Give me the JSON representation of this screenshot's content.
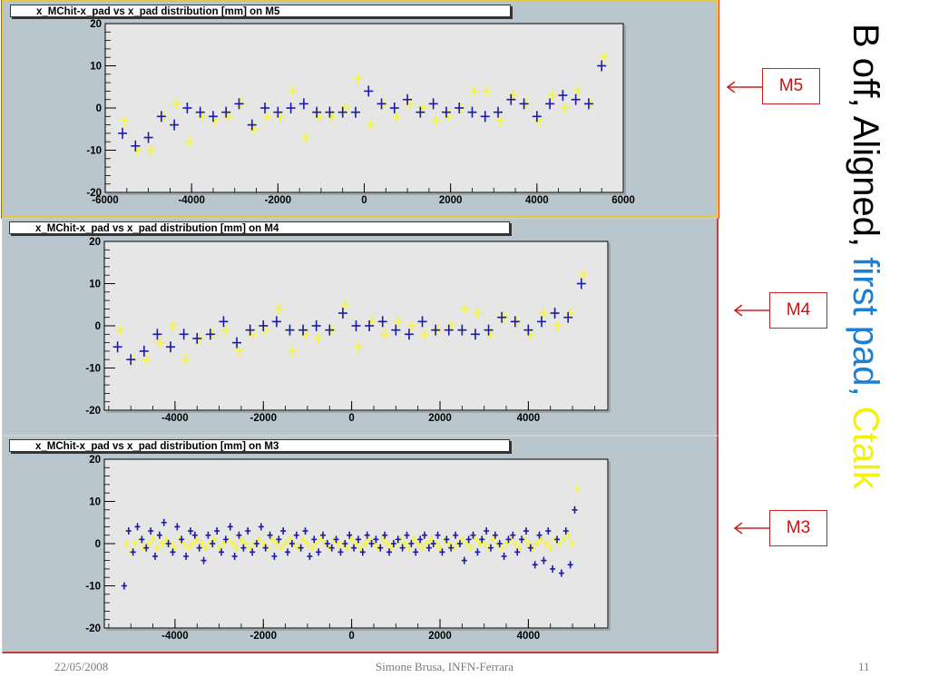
{
  "slide": {
    "title_parts": [
      {
        "text": "B off, Aligned, ",
        "color": "#000000"
      },
      {
        "text": "first pad, ",
        "color": "#1a7fd6"
      },
      {
        "text": "Ctalk",
        "color": "#f2f20c"
      }
    ],
    "callouts": [
      "M5",
      "M4",
      "M3"
    ],
    "footer": {
      "date": "22/05/2008",
      "author": "Simone Brusa, INFN-Ferrara",
      "page": "11"
    }
  },
  "colors": {
    "series_blue": "#1a1aa8",
    "series_yellow": "#f4f44a",
    "frame_bg": "#e6e6e6",
    "canvas_bg": "#b9c6cd"
  },
  "chart_data": [
    {
      "type": "scatter",
      "title": "x_MChit-x_pad vs x_pad distribution [mm] on M5",
      "xlabel": "",
      "ylabel": "",
      "xlim": [
        -6000,
        6000
      ],
      "ylim": [
        -20,
        20
      ],
      "xticks": [
        -6000,
        -4000,
        -2000,
        0,
        2000,
        4000,
        6000
      ],
      "yticks": [
        20,
        10,
        0,
        -10,
        -20
      ],
      "series": [
        {
          "color": "blue",
          "x": [
            -5600,
            -5300,
            -5000,
            -4700,
            -4400,
            -4100,
            -3800,
            -3500,
            -3200,
            -2900,
            -2600,
            -2300,
            -2000,
            -1700,
            -1400,
            -1100,
            -800,
            -500,
            -200,
            100,
            400,
            700,
            1000,
            1300,
            1600,
            1900,
            2200,
            2500,
            2800,
            3100,
            3400,
            3700,
            4000,
            4300,
            4600,
            4900,
            5200,
            5500
          ],
          "y": [
            -6,
            -9,
            -7,
            -2,
            -4,
            0,
            -1,
            -2,
            -1,
            1,
            -4,
            0,
            -1,
            0,
            1,
            -1,
            -1,
            -1,
            -1,
            4,
            1,
            0,
            2,
            -1,
            1,
            -1,
            0,
            -1,
            -2,
            -1,
            2,
            1,
            -2,
            1,
            3,
            2,
            1,
            10
          ]
        },
        {
          "color": "yellow",
          "x": [
            -5550,
            -5250,
            -4950,
            -4650,
            -4350,
            -4050,
            -3750,
            -3450,
            -3150,
            -2850,
            -2550,
            -2250,
            -1950,
            -1650,
            -1350,
            -1050,
            -750,
            -450,
            -150,
            150,
            450,
            750,
            1050,
            1350,
            1650,
            1950,
            2250,
            2550,
            2850,
            3150,
            3450,
            3750,
            4050,
            4350,
            4650,
            4950,
            5250,
            5550
          ],
          "y": [
            -3,
            -10,
            -10,
            -2,
            1,
            -8,
            -2,
            -3,
            -2,
            1,
            -5,
            -2,
            -2,
            4,
            -7,
            -2,
            -2,
            0,
            7,
            -4,
            1,
            -2,
            1,
            0,
            -3,
            -2,
            0,
            4,
            4,
            -3,
            3,
            1,
            -3,
            3,
            0,
            4,
            1,
            12
          ]
        }
      ]
    },
    {
      "type": "scatter",
      "title": "x_MChit-x_pad vs x_pad distribution [mm] on M4",
      "xlabel": "",
      "ylabel": "",
      "xlim": [
        -5600,
        5800
      ],
      "ylim": [
        -20,
        20
      ],
      "xticks": [
        -4000,
        -2000,
        0,
        2000,
        4000
      ],
      "yticks": [
        20,
        10,
        0,
        -10,
        -20
      ],
      "series": [
        {
          "color": "blue",
          "x": [
            -5300,
            -5000,
            -4700,
            -4400,
            -4100,
            -3800,
            -3500,
            -3200,
            -2900,
            -2600,
            -2300,
            -2000,
            -1700,
            -1400,
            -1100,
            -800,
            -500,
            -200,
            100,
            400,
            700,
            1000,
            1300,
            1600,
            1900,
            2200,
            2500,
            2800,
            3100,
            3400,
            3700,
            4000,
            4300,
            4600,
            4900,
            5200
          ],
          "y": [
            -5,
            -8,
            -6,
            -2,
            -5,
            -2,
            -3,
            -2,
            1,
            -4,
            -1,
            0,
            1,
            -1,
            -1,
            0,
            -1,
            3,
            0,
            0,
            1,
            -1,
            -2,
            1,
            -1,
            -1,
            -1,
            -2,
            -1,
            2,
            1,
            -1,
            1,
            3,
            2,
            10
          ]
        },
        {
          "color": "yellow",
          "x": [
            -5250,
            -4950,
            -4650,
            -4350,
            -4050,
            -3750,
            -3450,
            -3150,
            -2850,
            -2550,
            -2250,
            -1950,
            -1650,
            -1350,
            -1050,
            -750,
            -450,
            -150,
            150,
            450,
            750,
            1050,
            1350,
            1650,
            1950,
            2250,
            2550,
            2850,
            3150,
            3450,
            3750,
            4050,
            4350,
            4650,
            4950,
            5250
          ],
          "y": [
            -1,
            -8,
            -8,
            -4,
            0,
            -8,
            -3,
            -2,
            -1,
            -6,
            -2,
            -1,
            4,
            -6,
            -2,
            -3,
            -1,
            5,
            -5,
            1,
            -2,
            1,
            0,
            -2,
            -1,
            0,
            4,
            3,
            -2,
            2,
            1,
            -2,
            3,
            0,
            3,
            12
          ]
        }
      ]
    },
    {
      "type": "scatter",
      "title": "x_MChit-x_pad vs x_pad distribution [mm] on M3",
      "xlabel": "",
      "ylabel": "",
      "xlim": [
        -5600,
        5800
      ],
      "ylim": [
        -20,
        20
      ],
      "xticks": [
        -4000,
        -2000,
        0,
        2000,
        4000
      ],
      "yticks": [
        20,
        10,
        0,
        -10,
        -20
      ],
      "series": [
        {
          "color": "blue",
          "x": [
            -5150,
            -5050,
            -4950,
            -4850,
            -4750,
            -4650,
            -4550,
            -4450,
            -4350,
            -4250,
            -4150,
            -4050,
            -3950,
            -3850,
            -3750,
            -3650,
            -3550,
            -3450,
            -3350,
            -3250,
            -3150,
            -3050,
            -2950,
            -2850,
            -2750,
            -2650,
            -2550,
            -2450,
            -2350,
            -2250,
            -2150,
            -2050,
            -1950,
            -1850,
            -1750,
            -1650,
            -1550,
            -1450,
            -1350,
            -1250,
            -1150,
            -1050,
            -950,
            -850,
            -750,
            -650,
            -550,
            -450,
            -350,
            -250,
            -150,
            -50,
            50,
            150,
            250,
            350,
            450,
            550,
            650,
            750,
            850,
            950,
            1050,
            1150,
            1250,
            1350,
            1450,
            1550,
            1650,
            1750,
            1850,
            1950,
            2050,
            2150,
            2250,
            2350,
            2450,
            2550,
            2650,
            2750,
            2850,
            2950,
            3050,
            3150,
            3250,
            3350,
            3450,
            3550,
            3650,
            3750,
            3850,
            3950,
            4050,
            4150,
            4250,
            4350,
            4450,
            4550,
            4650,
            4750,
            4850,
            4950,
            5050
          ],
          "y": [
            -10,
            3,
            -2,
            4,
            1,
            -1,
            3,
            -3,
            2,
            5,
            0,
            -2,
            4,
            1,
            -3,
            3,
            2,
            -1,
            -4,
            2,
            0,
            3,
            -2,
            1,
            4,
            -3,
            2,
            -1,
            3,
            -2,
            0,
            4,
            -1,
            2,
            -3,
            1,
            3,
            -2,
            0,
            2,
            -1,
            3,
            -3,
            1,
            -2,
            2,
            0,
            -1,
            1,
            -2,
            0,
            2,
            -1,
            1,
            -2,
            2,
            0,
            1,
            -1,
            2,
            -2,
            0,
            1,
            -1,
            2,
            0,
            -2,
            1,
            2,
            -1,
            0,
            2,
            -2,
            1,
            -1,
            2,
            0,
            -4,
            1,
            2,
            -2,
            1,
            3,
            -1,
            2,
            0,
            -3,
            1,
            2,
            -2,
            1,
            3,
            -1,
            -5,
            2,
            -4,
            3,
            -6,
            1,
            -7,
            3,
            -5,
            8
          ]
        },
        {
          "color": "yellow",
          "x": [
            -5100,
            -5000,
            -4900,
            -4800,
            -4700,
            -4600,
            -4500,
            -4400,
            -4300,
            -4200,
            -4100,
            -4000,
            -3900,
            -3800,
            -3700,
            -3600,
            -3500,
            -3400,
            -3300,
            -3200,
            -3100,
            -3000,
            -2900,
            -2800,
            -2700,
            -2600,
            -2500,
            -2400,
            -2300,
            -2200,
            -2100,
            -2000,
            -1900,
            -1800,
            -1700,
            -1600,
            -1500,
            -1400,
            -1300,
            -1200,
            -1100,
            -1000,
            -900,
            -800,
            -700,
            -600,
            -500,
            -400,
            -300,
            -200,
            -100,
            0,
            100,
            200,
            300,
            400,
            500,
            600,
            700,
            800,
            900,
            1000,
            1100,
            1200,
            1300,
            1400,
            1500,
            1600,
            1700,
            1800,
            1900,
            2000,
            2100,
            2200,
            2300,
            2400,
            2500,
            2600,
            2700,
            2800,
            2900,
            3000,
            3100,
            3200,
            3300,
            3400,
            3500,
            3600,
            3700,
            3800,
            3900,
            4000,
            4100,
            4200,
            4300,
            4400,
            4500,
            4600,
            4700,
            4800,
            4900,
            5000,
            5100
          ],
          "y": [
            0,
            -2,
            0,
            1,
            -1,
            0,
            1,
            -1,
            0,
            1,
            0,
            -1,
            1,
            0,
            -1,
            0,
            1,
            0,
            -1,
            0,
            1,
            -1,
            0,
            1,
            0,
            -1,
            1,
            0,
            -1,
            0,
            1,
            0,
            -1,
            1,
            0,
            -1,
            0,
            1,
            0,
            -1,
            1,
            0,
            -1,
            0,
            1,
            0,
            -1,
            1,
            0,
            0,
            -1,
            1,
            0,
            -1,
            0,
            1,
            0,
            -1,
            1,
            0,
            -1,
            0,
            1,
            0,
            -1,
            1,
            0,
            -1,
            0,
            1,
            0,
            -1,
            1,
            0,
            -1,
            0,
            1,
            0,
            -1,
            1,
            0,
            0,
            -1,
            1,
            0,
            -1,
            0,
            1,
            0,
            -1,
            1,
            0,
            -1,
            0,
            1,
            0,
            -1,
            1,
            0,
            1,
            2,
            0,
            13
          ]
        }
      ]
    }
  ]
}
